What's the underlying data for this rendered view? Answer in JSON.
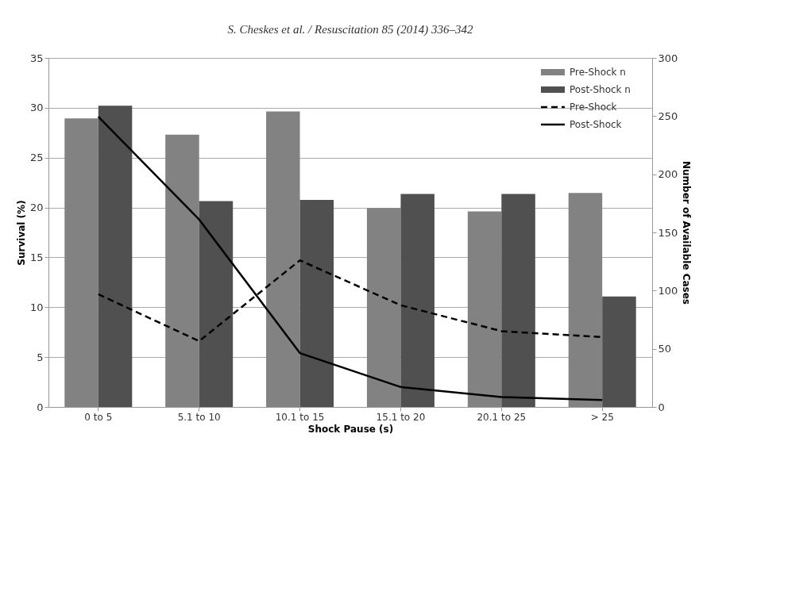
{
  "chart_data": {
    "type": "bar",
    "title": "S. Cheskes et al. / Resuscitation 85 (2014) 336–342",
    "xlabel": "Shock Pause (s)",
    "ylabel": "Survival (%)",
    "y2label": "Number of Available Cases",
    "categories": [
      "0 to 5",
      "5.1 to 10",
      "10.1 to 15",
      "15.1 to 20",
      "20.1 to 25",
      "> 25"
    ],
    "series": [
      {
        "name": "Pre-Shock n",
        "axis": "y2",
        "color": "#828282",
        "values": [
          248,
          234,
          254,
          171,
          168,
          184
        ]
      },
      {
        "name": "Post-Shock n",
        "axis": "y2",
        "color": "#505050",
        "values": [
          259,
          177,
          178,
          183,
          183,
          95
        ]
      },
      {
        "name": "Pre-Shock",
        "type": "line",
        "axis": "y",
        "color": "#000000",
        "line_style": "dashed",
        "values": [
          11.3,
          6.6,
          14.7,
          10.2,
          7.6,
          7.0
        ]
      },
      {
        "name": "Post-Shock",
        "type": "line",
        "axis": "y",
        "color": "#000000",
        "line_style": "solid",
        "values": [
          29.1,
          18.8,
          5.4,
          2.0,
          1.0,
          0.7
        ]
      }
    ],
    "ylim": [
      0,
      35
    ],
    "yticks": [
      0,
      5,
      10,
      15,
      20,
      25,
      30,
      35
    ],
    "y2lim": [
      0,
      300
    ],
    "y2ticks": [
      0,
      50,
      100,
      150,
      200,
      250,
      300
    ],
    "grid": "y",
    "legend": "top right",
    "marker": "none"
  }
}
